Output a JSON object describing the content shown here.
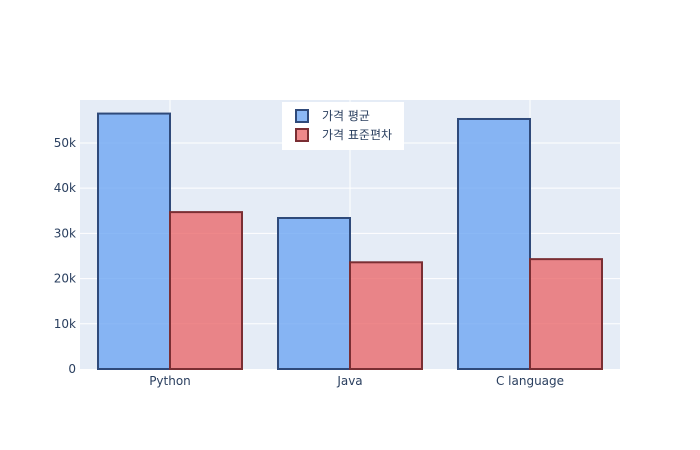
{
  "chart_data": {
    "type": "bar",
    "categories": [
      "Python",
      "Java",
      "C language"
    ],
    "series": [
      {
        "name": "가격 평균",
        "values": [
          56500,
          33400,
          55300
        ],
        "fill": "#6ea6f2",
        "stroke": "#2f4a7a"
      },
      {
        "name": "가격 표준편차",
        "values": [
          34700,
          23600,
          24300
        ],
        "fill": "#ea6a6d",
        "stroke": "#7a2e33"
      }
    ],
    "title": "",
    "xlabel": "",
    "ylabel": "",
    "ylim": [
      0,
      59500
    ],
    "yticks": [
      0,
      10000,
      20000,
      30000,
      40000,
      50000
    ],
    "ytick_labels": [
      "0",
      "10k",
      "20k",
      "30k",
      "40k",
      "50k"
    ],
    "grid": true,
    "legend_position": "top-center",
    "plot_background": "#e5ecf6"
  }
}
